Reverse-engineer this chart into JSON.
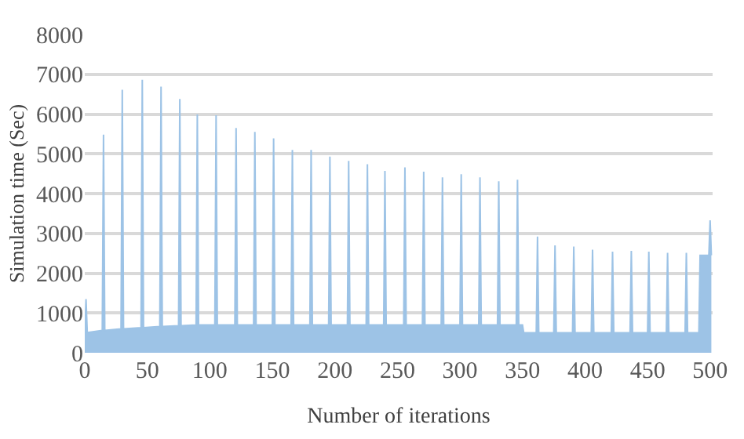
{
  "chart_data": {
    "type": "area",
    "xlabel": "Number of iterations",
    "ylabel": "Simulation time (Sec)",
    "x": [
      0,
      1,
      2,
      14,
      15,
      16,
      29,
      30,
      31,
      45,
      46,
      47,
      60,
      61,
      62,
      75,
      76,
      77,
      89,
      90,
      91,
      104,
      105,
      106,
      120,
      121,
      122,
      135,
      136,
      137,
      150,
      151,
      152,
      165,
      166,
      167,
      180,
      181,
      182,
      195,
      196,
      197,
      210,
      211,
      212,
      225,
      226,
      227,
      239,
      240,
      241,
      255,
      256,
      257,
      270,
      271,
      272,
      285,
      286,
      287,
      300,
      301,
      302,
      315,
      316,
      317,
      330,
      331,
      332,
      345,
      346,
      347,
      350,
      351,
      361,
      362,
      363,
      375,
      376,
      377,
      390,
      391,
      392,
      405,
      406,
      407,
      421,
      422,
      423,
      436,
      437,
      438,
      450,
      451,
      452,
      465,
      466,
      467,
      480,
      481,
      482,
      491,
      492,
      499,
      500,
      501
    ],
    "series": [
      {
        "color": "#9dc3e6",
        "values": [
          500,
          1350,
          510,
          560,
          5480,
          560,
          600,
          6610,
          600,
          630,
          6860,
          630,
          660,
          6690,
          660,
          680,
          6380,
          680,
          700,
          5990,
          700,
          700,
          5970,
          700,
          700,
          5650,
          700,
          700,
          5550,
          700,
          700,
          5390,
          700,
          700,
          5100,
          700,
          700,
          5100,
          700,
          700,
          4930,
          700,
          700,
          4820,
          700,
          700,
          4740,
          700,
          700,
          4570,
          700,
          700,
          4660,
          700,
          700,
          4550,
          700,
          700,
          4410,
          700,
          700,
          4490,
          700,
          700,
          4410,
          700,
          700,
          4310,
          700,
          700,
          4350,
          700,
          700,
          500,
          500,
          2920,
          500,
          500,
          2700,
          500,
          500,
          2670,
          500,
          500,
          2590,
          500,
          500,
          2540,
          500,
          500,
          2560,
          500,
          500,
          2540,
          500,
          500,
          2510,
          500,
          500,
          2510,
          500,
          500,
          2450,
          2450,
          3330,
          2450
        ]
      }
    ],
    "xlim": [
      0,
      502
    ],
    "xticks": [
      0,
      50,
      100,
      150,
      200,
      250,
      300,
      350,
      400,
      450,
      500
    ],
    "ylim": [
      0,
      8000
    ],
    "yticks": [
      0,
      1000,
      2000,
      3000,
      4000,
      5000,
      6000,
      7000,
      8000
    ],
    "grid": "y"
  }
}
